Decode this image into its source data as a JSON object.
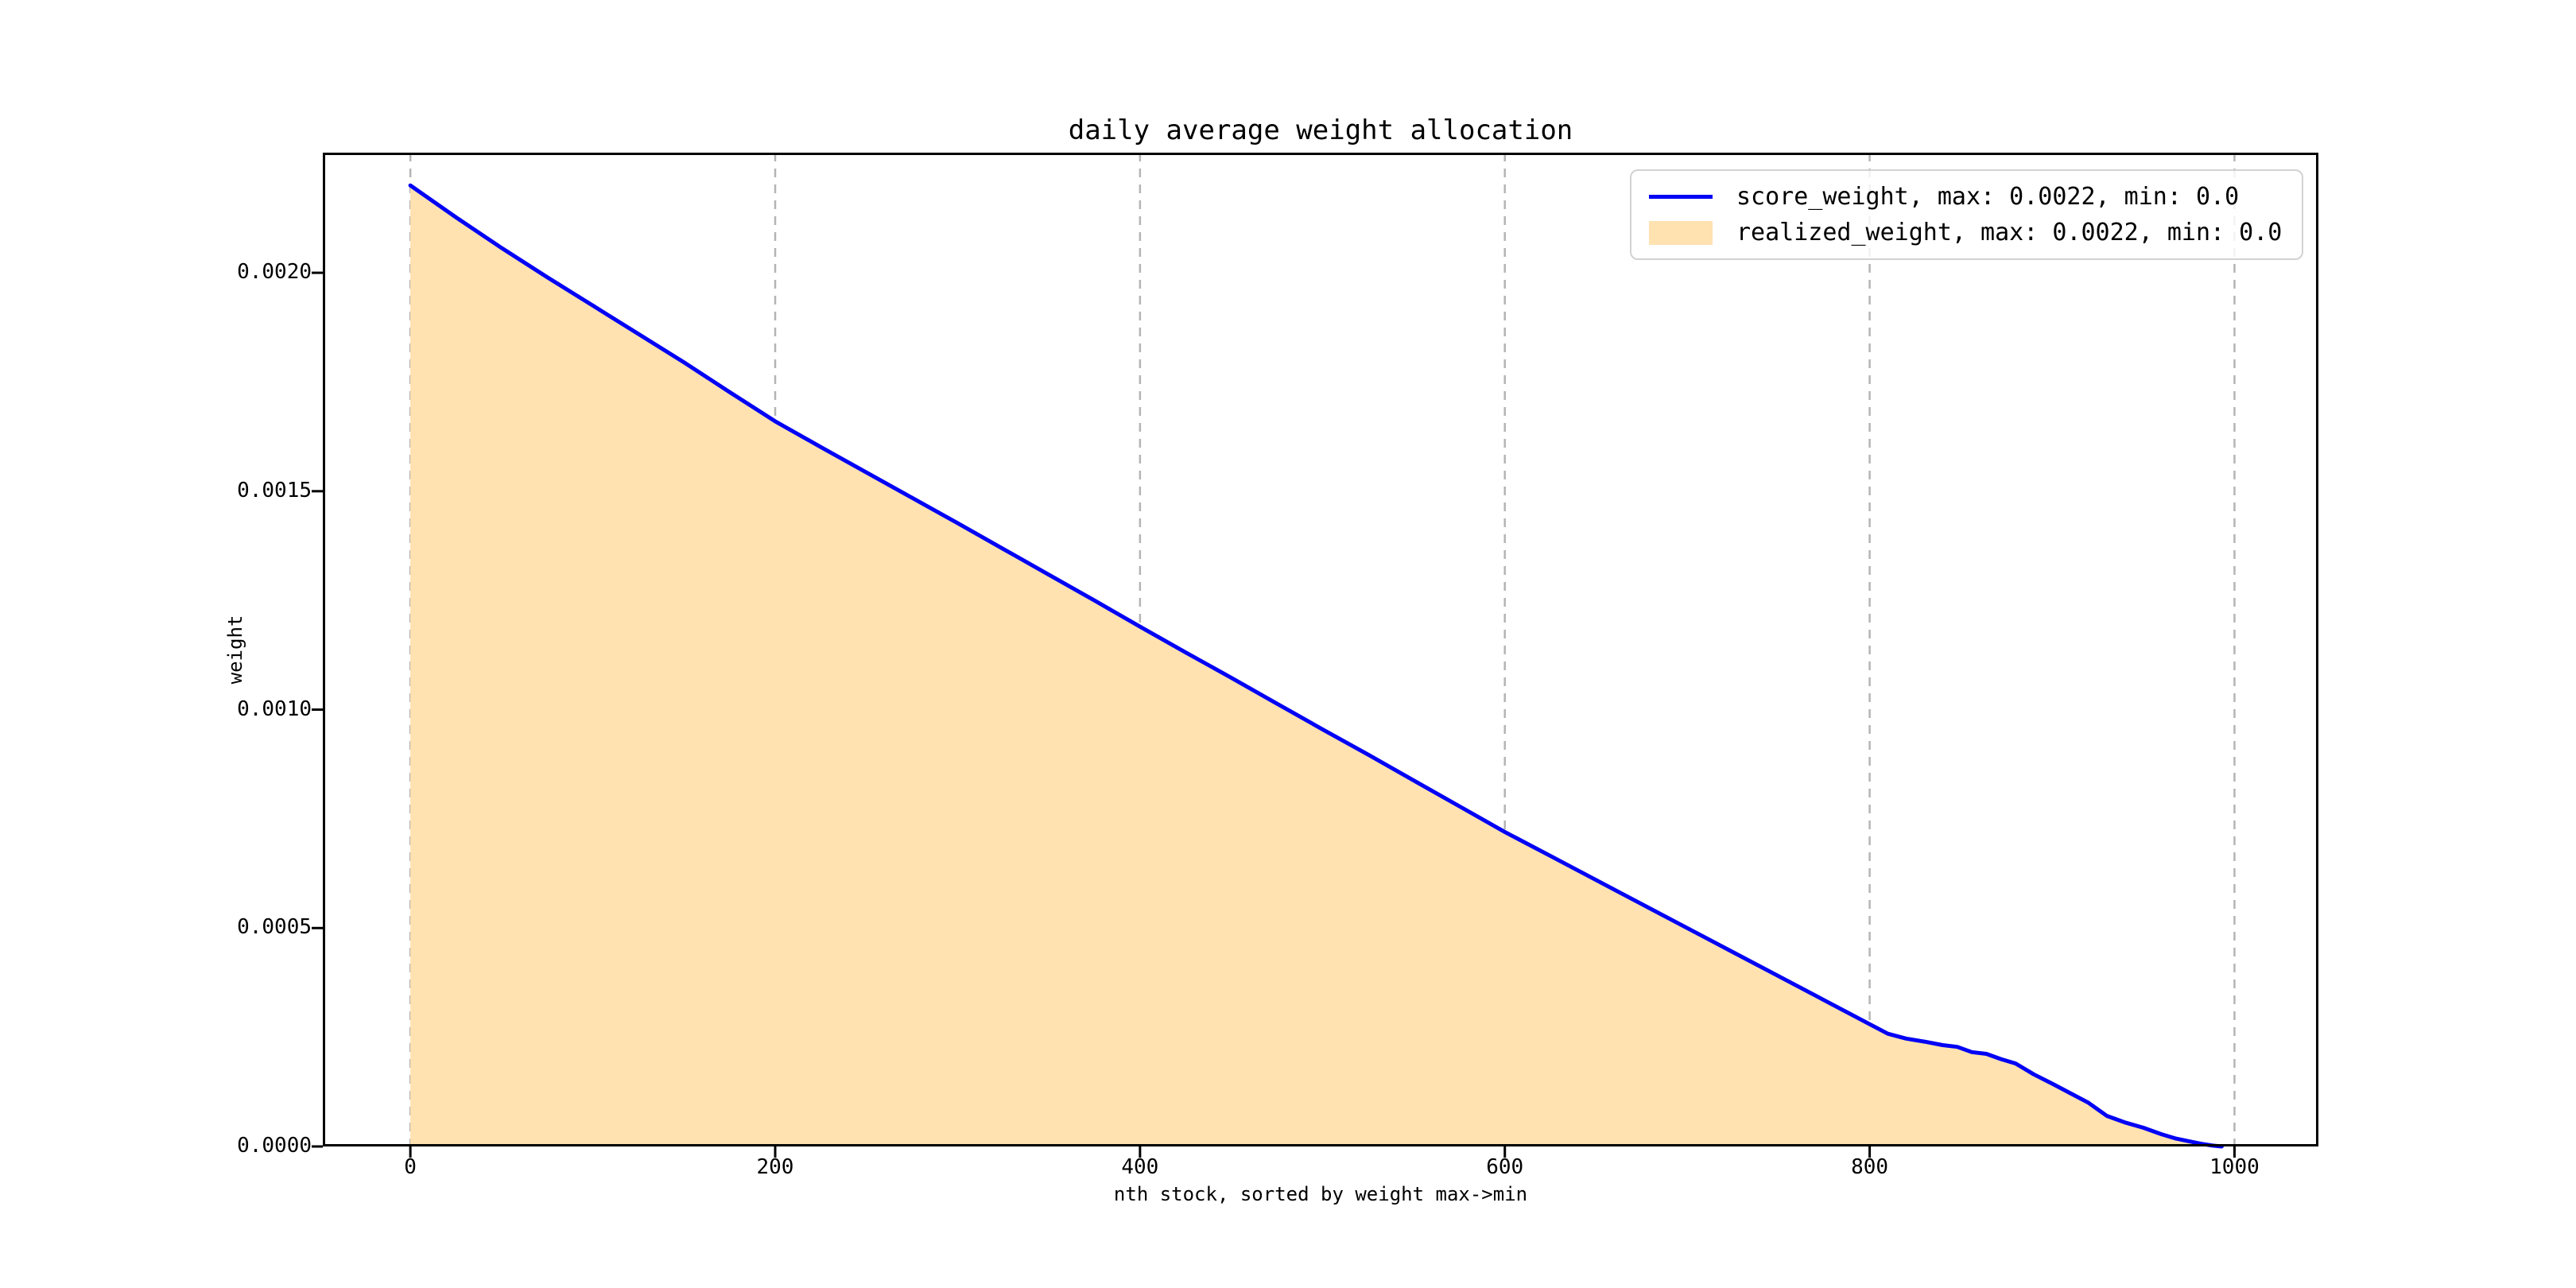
{
  "chart_data": {
    "type": "area",
    "title": "daily average weight allocation",
    "xlabel": "nth stock, sorted by weight max->min",
    "ylabel": "weight",
    "xlim": [
      -48,
      1046
    ],
    "ylim": [
      0,
      0.002275
    ],
    "xticks": {
      "values": [
        0,
        200,
        400,
        600,
        800,
        1000
      ],
      "labels": [
        "0",
        "200",
        "400",
        "600",
        "800",
        "1000"
      ]
    },
    "yticks": {
      "values": [
        0.0,
        0.0005,
        0.001,
        0.0015,
        0.002
      ],
      "labels": [
        "0.0000",
        "0.0005",
        "0.0010",
        "0.0015",
        "0.0020"
      ]
    },
    "grid": {
      "axis": "x",
      "style": "dashed",
      "color": "#b4b4b4"
    },
    "spine_color": "#000000",
    "legend_position": "upper right",
    "x": [
      0,
      25,
      50,
      75,
      100,
      125,
      150,
      175,
      200,
      225,
      250,
      275,
      300,
      325,
      350,
      375,
      400,
      425,
      450,
      475,
      500,
      525,
      550,
      575,
      600,
      625,
      650,
      675,
      700,
      725,
      750,
      775,
      800,
      810,
      820,
      830,
      840,
      848,
      856,
      864,
      872,
      880,
      890,
      900,
      910,
      920,
      930,
      940,
      950,
      960,
      968,
      975,
      982,
      988,
      993
    ],
    "series": [
      {
        "name": "score_weight, max: 0.0022, min: 0.0",
        "type": "line",
        "color": "#0101f5",
        "max": 0.0022,
        "min": 0.0,
        "values": [
          0.0022,
          0.002127,
          0.002057,
          0.00199,
          0.001925,
          0.00186,
          0.001795,
          0.001727,
          0.00166,
          0.001601,
          0.001543,
          0.001485,
          0.001427,
          0.001368,
          0.001309,
          0.00125,
          0.00119,
          0.001131,
          0.001073,
          0.001014,
          0.000955,
          0.000897,
          0.000838,
          0.000779,
          0.00072,
          0.000665,
          0.00061,
          0.000555,
          0.0005,
          0.000445,
          0.00039,
          0.000335,
          0.00028,
          0.000258,
          0.000247,
          0.00024,
          0.000232,
          0.000228,
          0.000216,
          0.000212,
          0.0002,
          0.00019,
          0.000165,
          0.000144,
          0.000122,
          0.0001,
          7e-05,
          5.5e-05,
          4.3e-05,
          2.8e-05,
          1.8e-05,
          1.2e-05,
          6e-06,
          2e-06,
          0.0
        ]
      },
      {
        "name": "realized_weight, max: 0.0022, min: 0.0",
        "type": "area",
        "color": "#ffe2b0",
        "max": 0.0022,
        "min": 0.0,
        "values": [
          0.0022,
          0.002127,
          0.002057,
          0.00199,
          0.001925,
          0.00186,
          0.001795,
          0.001727,
          0.00166,
          0.001601,
          0.001543,
          0.001485,
          0.001427,
          0.001368,
          0.001309,
          0.00125,
          0.00119,
          0.001131,
          0.001073,
          0.001014,
          0.000955,
          0.000897,
          0.000838,
          0.000779,
          0.00072,
          0.000665,
          0.00061,
          0.000555,
          0.0005,
          0.000445,
          0.00039,
          0.000335,
          0.00028,
          0.000258,
          0.000247,
          0.00024,
          0.000232,
          0.000228,
          0.000216,
          0.000212,
          0.0002,
          0.00019,
          0.000165,
          0.000144,
          0.000122,
          0.0001,
          7e-05,
          5.5e-05,
          4.3e-05,
          2.8e-05,
          1.8e-05,
          1.2e-05,
          6e-06,
          2e-06,
          0.0
        ]
      }
    ]
  }
}
